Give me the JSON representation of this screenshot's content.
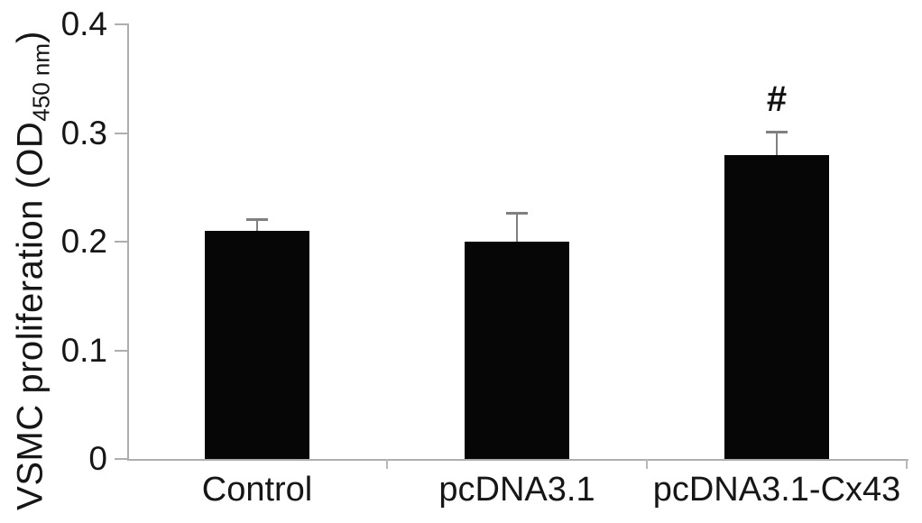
{
  "figure": {
    "background": "#ffffff",
    "bar_color": "#060606",
    "axis_color": "#aeaeae",
    "error_bar_color": "#808080",
    "text_color": "#161616"
  },
  "ylabel": {
    "prefix": "VSMC proliferation (OD",
    "subscript": "450 nm",
    "suffix": ")"
  },
  "chart_data": {
    "type": "bar",
    "title": "",
    "xlabel": "",
    "ylabel": "VSMC proliferation (OD 450 nm)",
    "categories": [
      "Control",
      "pcDNA3.1",
      "pcDNA3.1-Cx43"
    ],
    "values": [
      0.21,
      0.2,
      0.28
    ],
    "errors": [
      0.012,
      0.027,
      0.022
    ],
    "ylim": [
      0,
      0.4
    ],
    "yticks": [
      0,
      0.1,
      0.2,
      0.3,
      0.4
    ],
    "ytick_labels": [
      "0",
      "0.1",
      "0.2",
      "0.3",
      "0.4"
    ],
    "annotations": [
      {
        "text": "#",
        "category": "pcDNA3.1-Cx43"
      }
    ],
    "grid": false,
    "legend": null
  }
}
